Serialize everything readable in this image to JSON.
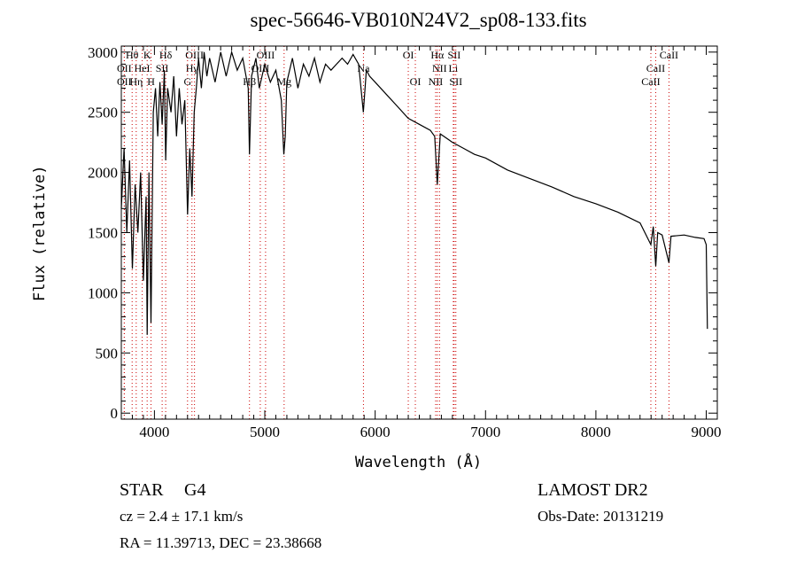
{
  "chart_data": {
    "type": "line",
    "title": "spec-56646-VB010N24V2_sp08-133.fits",
    "xlabel": "Wavelength (Å)",
    "ylabel": "Flux (relative)",
    "xlim": [
      3700,
      9100
    ],
    "ylim": [
      -50,
      3050
    ],
    "xticks": [
      4000,
      5000,
      6000,
      7000,
      8000,
      9000
    ],
    "yticks": [
      0,
      500,
      1000,
      1500,
      2000,
      2500,
      3000
    ],
    "grid": false,
    "line_color": "#000000",
    "marker_color": "#cc0000",
    "x": [
      3700,
      3725,
      3750,
      3775,
      3800,
      3825,
      3850,
      3875,
      3900,
      3925,
      3934,
      3950,
      3969,
      3990,
      4010,
      4030,
      4050,
      4070,
      4090,
      4102,
      4120,
      4150,
      4175,
      4200,
      4225,
      4250,
      4275,
      4300,
      4320,
      4340,
      4360,
      4380,
      4400,
      4425,
      4450,
      4475,
      4500,
      4550,
      4600,
      4650,
      4700,
      4750,
      4800,
      4850,
      4861,
      4880,
      4920,
      4950,
      5000,
      5050,
      5100,
      5150,
      5172,
      5185,
      5200,
      5250,
      5300,
      5350,
      5400,
      5450,
      5500,
      5550,
      5600,
      5650,
      5700,
      5750,
      5800,
      5850,
      5893,
      5920,
      5950,
      6000,
      6100,
      6200,
      6300,
      6400,
      6500,
      6540,
      6563,
      6590,
      6700,
      6800,
      6900,
      7000,
      7200,
      7400,
      7600,
      7800,
      8000,
      8200,
      8400,
      8498,
      8520,
      8542,
      8560,
      8600,
      8662,
      8680,
      8800,
      8900,
      8980,
      9000,
      9010
    ],
    "y": [
      1700,
      2200,
      1500,
      2100,
      1200,
      1900,
      1500,
      2000,
      1100,
      1800,
      650,
      2000,
      750,
      2500,
      2700,
      2300,
      2750,
      2400,
      2850,
      2100,
      2700,
      2500,
      2800,
      2300,
      2700,
      2400,
      2600,
      1650,
      2200,
      1800,
      2500,
      2700,
      2950,
      2700,
      3000,
      2800,
      2950,
      2750,
      3000,
      2800,
      3000,
      2850,
      2950,
      2700,
      2150,
      2800,
      2950,
      2700,
      2900,
      2750,
      2850,
      2600,
      2150,
      2300,
      2750,
      2950,
      2700,
      2900,
      2800,
      2950,
      2750,
      2900,
      2850,
      2900,
      2950,
      2900,
      2980,
      2900,
      2500,
      2850,
      2800,
      2750,
      2650,
      2550,
      2450,
      2400,
      2350,
      2300,
      1900,
      2320,
      2250,
      2200,
      2150,
      2120,
      2020,
      1950,
      1880,
      1800,
      1740,
      1670,
      1580,
      1400,
      1550,
      1220,
      1500,
      1480,
      1250,
      1470,
      1480,
      1460,
      1450,
      1400,
      700
    ],
    "lines": [
      {
        "label": "Hθ",
        "wave": 3798,
        "row": 0
      },
      {
        "label": "K",
        "wave": 3934,
        "row": 0
      },
      {
        "label": "Hδ",
        "wave": 4102,
        "row": 0
      },
      {
        "label": "OIII",
        "wave": 4363,
        "row": 0
      },
      {
        "label": "OIII",
        "wave": 5007,
        "row": 0
      },
      {
        "label": "OI",
        "wave": 6300,
        "row": 0
      },
      {
        "label": "Hα",
        "wave": 6563,
        "row": 0
      },
      {
        "label": "SII",
        "wave": 6716,
        "row": 0
      },
      {
        "label": "CaII",
        "wave": 8662,
        "row": 0
      },
      {
        "label": "OII",
        "wave": 3727,
        "row": 1
      },
      {
        "label": "HeI",
        "wave": 3889,
        "row": 1
      },
      {
        "label": "SII",
        "wave": 4070,
        "row": 1
      },
      {
        "label": "Hγ",
        "wave": 4340,
        "row": 1
      },
      {
        "label": "OIII",
        "wave": 4959,
        "row": 1
      },
      {
        "label": "Na",
        "wave": 5894,
        "row": 1
      },
      {
        "label": "NII",
        "wave": 6583,
        "row": 1
      },
      {
        "label": "Li",
        "wave": 6708,
        "row": 1
      },
      {
        "label": "CaII",
        "wave": 8542,
        "row": 1
      },
      {
        "label": "OII",
        "wave": 3727,
        "row": 2
      },
      {
        "label": "Hη",
        "wave": 3835,
        "row": 2
      },
      {
        "label": "H",
        "wave": 3969,
        "row": 2
      },
      {
        "label": "G",
        "wave": 4300,
        "row": 2
      },
      {
        "label": "Hβ",
        "wave": 4861,
        "row": 2
      },
      {
        "label": "Mg",
        "wave": 5175,
        "row": 2
      },
      {
        "label": "OI",
        "wave": 6364,
        "row": 2
      },
      {
        "label": "NII",
        "wave": 6548,
        "row": 2
      },
      {
        "label": "SII",
        "wave": 6731,
        "row": 2
      },
      {
        "label": "CaII",
        "wave": 8498,
        "row": 2
      }
    ]
  },
  "info": {
    "class": "STAR",
    "subclass": "G4",
    "cz": "cz = 2.4 ± 17.1 km/s",
    "radec": "RA =  11.39713, DEC =  23.38668",
    "survey": "LAMOST DR2",
    "obsdate": "Obs-Date: 20131219"
  }
}
